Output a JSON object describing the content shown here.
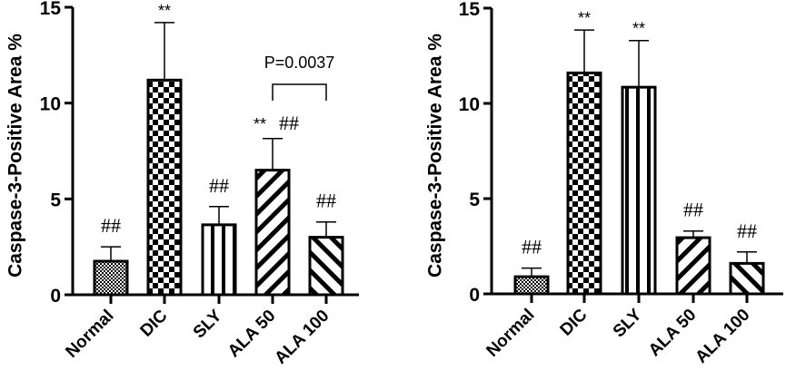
{
  "chart_data": [
    {
      "type": "bar",
      "title": "",
      "xlabel": "",
      "ylabel": "Caspase-3-Positive Area %",
      "ylim": [
        0,
        15
      ],
      "yticks": [
        0,
        5,
        10,
        15
      ],
      "grid": false,
      "categories": [
        "Normal",
        "DIC",
        "SLY",
        "ALA 50",
        "ALA 100"
      ],
      "values": [
        1.75,
        11.2,
        3.65,
        6.5,
        3.0
      ],
      "error_upper": [
        2.5,
        14.2,
        4.6,
        8.15,
        3.8
      ],
      "patterns": [
        "fine-checker",
        "checker",
        "vertical",
        "diag-down",
        "diag-up"
      ],
      "annotations": [
        "##",
        "**",
        "##",
        "** ##",
        "##"
      ],
      "comparison": {
        "from": "ALA 50",
        "to": "ALA 100",
        "label": "P=0.0037"
      }
    },
    {
      "type": "bar",
      "title": "",
      "xlabel": "",
      "ylabel": "Caspase-3-Positive Area %",
      "ylim": [
        0,
        15
      ],
      "yticks": [
        0,
        5,
        10,
        15
      ],
      "grid": false,
      "categories": [
        "Normal",
        "DIC",
        "SLY",
        "ALA 50",
        "ALA 100"
      ],
      "values": [
        0.9,
        11.6,
        10.85,
        2.95,
        1.6
      ],
      "error_upper": [
        1.35,
        13.85,
        13.3,
        3.3,
        2.2
      ],
      "patterns": [
        "fine-checker",
        "checker",
        "vertical",
        "diag-down",
        "diag-up"
      ],
      "annotations": [
        "##",
        "**",
        "**",
        "##",
        "##"
      ]
    }
  ]
}
